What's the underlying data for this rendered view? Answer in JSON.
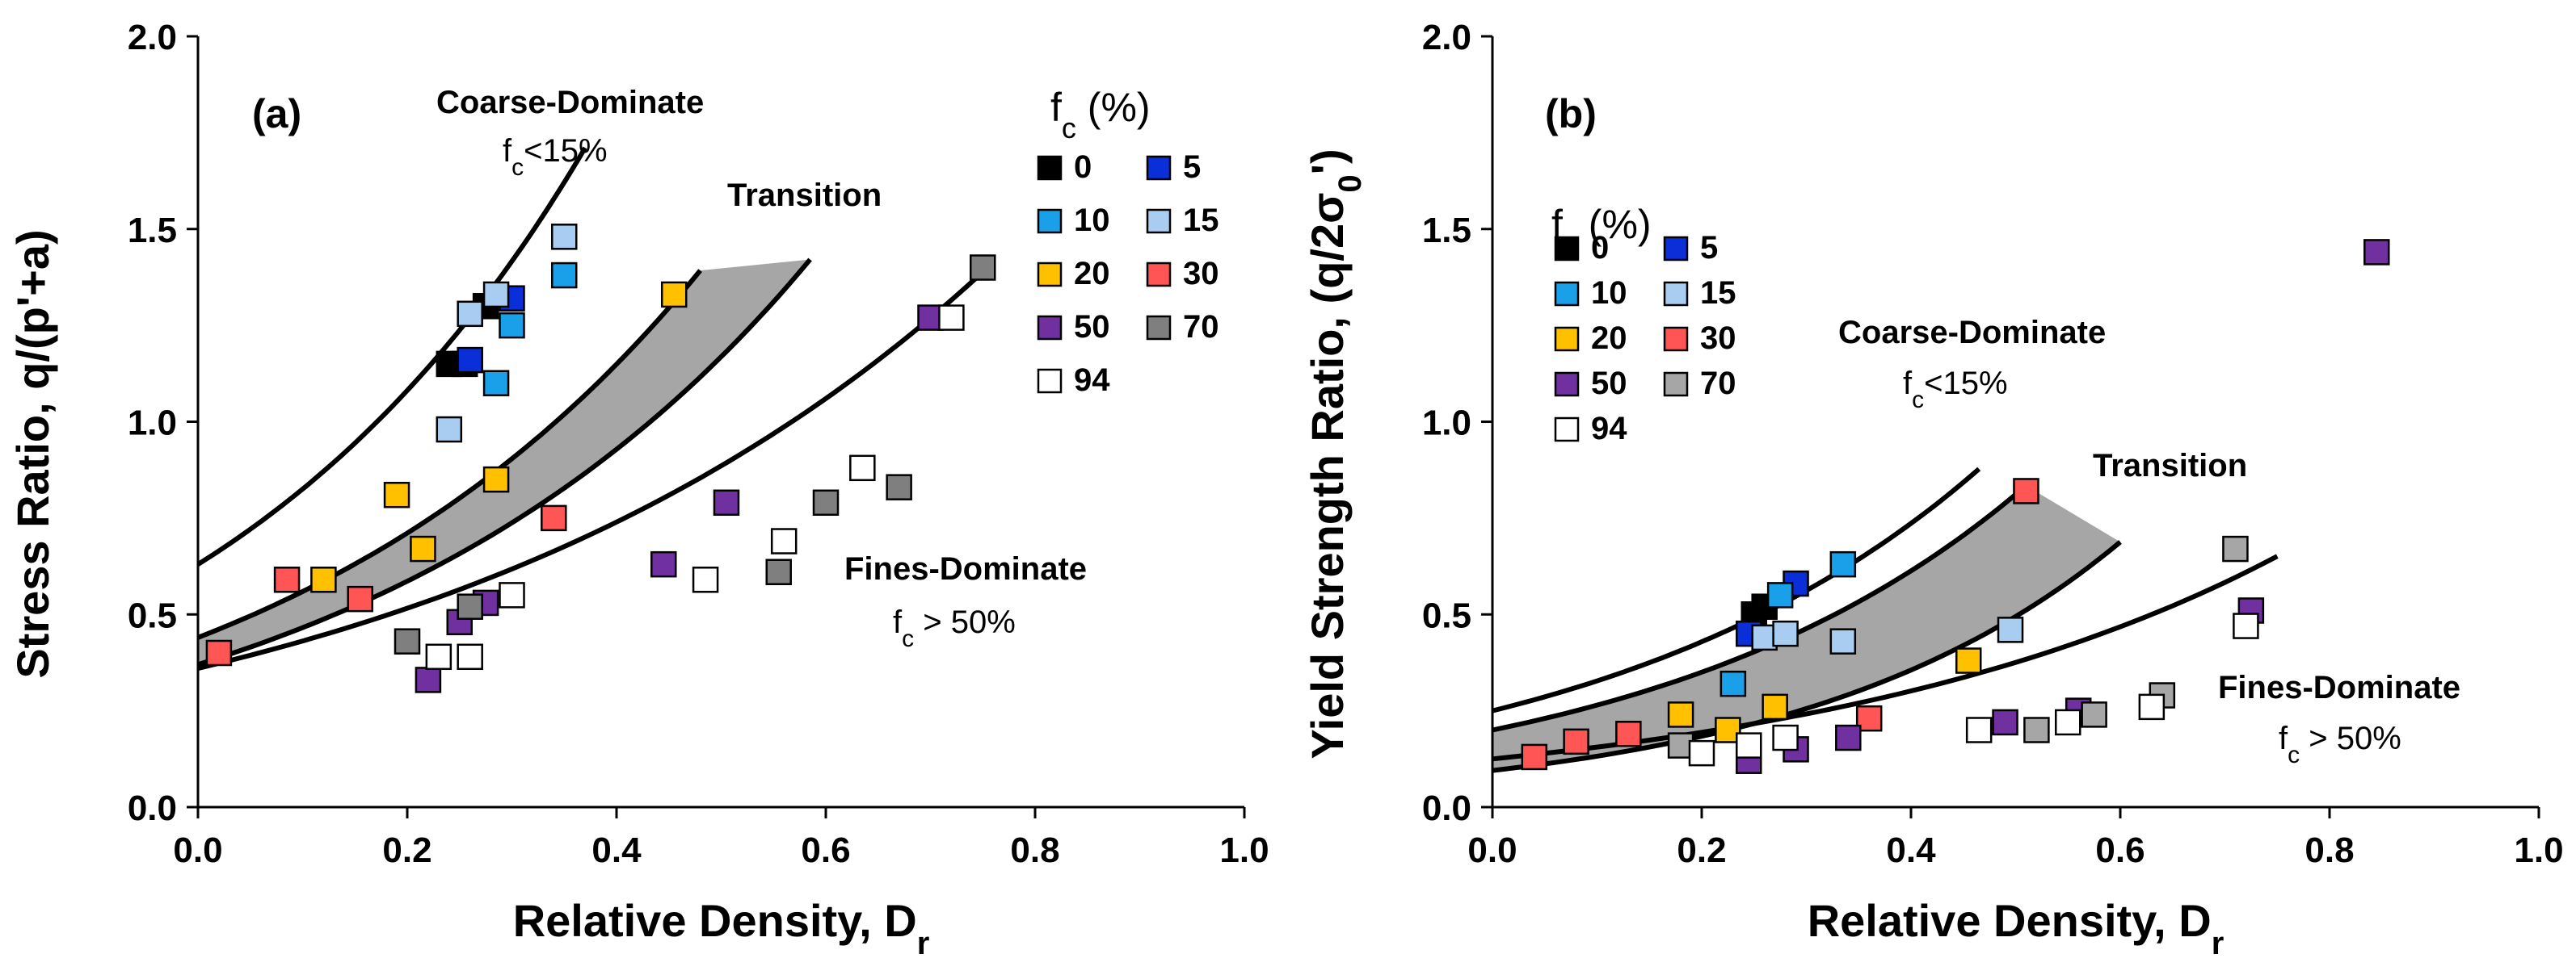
{
  "chart_data": [
    {
      "type": "scatter",
      "panel_label": "(a)",
      "title": "",
      "xlabel": "Relative Density, D_r",
      "ylabel": "Stress Ratio, q/(p'+a)",
      "xlim": [
        0,
        1.0
      ],
      "ylim": [
        0,
        2.0
      ],
      "xticks": [
        "0.0",
        "0.2",
        "0.4",
        "0.6",
        "0.8",
        "1.0"
      ],
      "yticks": [
        "0.0",
        "0.5",
        "1.0",
        "1.5",
        "2.0"
      ],
      "legend": {
        "title": "f_c (%)",
        "placement": "top-right",
        "entries": [
          {
            "label": "0",
            "color": "#000000"
          },
          {
            "label": "5",
            "color": "#0a2fd8"
          },
          {
            "label": "10",
            "color": "#1aa0e8"
          },
          {
            "label": "15",
            "color": "#a8cdf0"
          },
          {
            "label": "20",
            "color": "#ffc000"
          },
          {
            "label": "30",
            "color": "#ff5555"
          },
          {
            "label": "50",
            "color": "#7030a0"
          },
          {
            "label": "70",
            "color": "#7f7f7f"
          },
          {
            "label": "94",
            "color": "#ffffff"
          }
        ]
      },
      "annotations": {
        "coarse_title": "Coarse-Dominate",
        "coarse_sub": "f_c<15%",
        "transition": "Transition",
        "fines_title": "Fines-Dominate",
        "fines_sub": "f_c > 50%"
      },
      "series": [
        {
          "name": "0",
          "color": "#000000",
          "points": [
            [
              0.24,
              1.15
            ],
            [
              0.255,
              1.15
            ],
            [
              0.275,
              1.3
            ]
          ]
        },
        {
          "name": "5",
          "color": "#0a2fd8",
          "points": [
            [
              0.26,
              1.16
            ],
            [
              0.3,
              1.32
            ]
          ]
        },
        {
          "name": "10",
          "color": "#1aa0e8",
          "points": [
            [
              0.285,
              1.1
            ],
            [
              0.3,
              1.25
            ],
            [
              0.35,
              1.38
            ]
          ]
        },
        {
          "name": "15",
          "color": "#a8cdf0",
          "points": [
            [
              0.24,
              0.98
            ],
            [
              0.26,
              1.28
            ],
            [
              0.285,
              1.33
            ],
            [
              0.35,
              1.48
            ]
          ]
        },
        {
          "name": "20",
          "color": "#ffc000",
          "points": [
            [
              0.19,
              0.81
            ],
            [
              0.12,
              0.59
            ],
            [
              0.215,
              0.67
            ],
            [
              0.285,
              0.85
            ],
            [
              0.455,
              1.33
            ]
          ]
        },
        {
          "name": "30",
          "color": "#ff5555",
          "points": [
            [
              0.02,
              0.4
            ],
            [
              0.085,
              0.59
            ],
            [
              0.155,
              0.54
            ],
            [
              0.34,
              0.75
            ]
          ]
        },
        {
          "name": "50",
          "color": "#7030a0",
          "points": [
            [
              0.22,
              0.33
            ],
            [
              0.25,
              0.48
            ],
            [
              0.275,
              0.53
            ],
            [
              0.445,
              0.63
            ],
            [
              0.505,
              0.79
            ],
            [
              0.7,
              1.27
            ]
          ]
        },
        {
          "name": "70",
          "color": "#7f7f7f",
          "points": [
            [
              0.2,
              0.43
            ],
            [
              0.26,
              0.52
            ],
            [
              0.555,
              0.61
            ],
            [
              0.6,
              0.79
            ],
            [
              0.67,
              0.83
            ],
            [
              0.75,
              1.4
            ]
          ]
        },
        {
          "name": "94",
          "color": "#ffffff",
          "points": [
            [
              0.23,
              0.39
            ],
            [
              0.26,
              0.39
            ],
            [
              0.3,
              0.55
            ],
            [
              0.485,
              0.59
            ],
            [
              0.56,
              0.69
            ],
            [
              0.635,
              0.88
            ],
            [
              0.72,
              1.27
            ]
          ]
        }
      ],
      "curves": {
        "coarse": {
          "a": 0.63,
          "b": 2.7,
          "x_end": 0.37
        },
        "band_upper": {
          "a": 0.44,
          "b": 2.4,
          "x_end": 0.48
        },
        "band_lower": {
          "a": 0.37,
          "b": 2.3,
          "x_end": 0.585
        },
        "fines": {
          "a": 0.36,
          "b": 1.8,
          "x_end": 0.76
        }
      }
    },
    {
      "type": "scatter",
      "panel_label": "(b)",
      "title": "",
      "xlabel": "Relative Density, D_r",
      "ylabel": "Yield Strength Ratio, (q/2σ_0')",
      "xlim": [
        0,
        1.0
      ],
      "ylim": [
        0,
        2.0
      ],
      "xticks": [
        "0.0",
        "0.2",
        "0.4",
        "0.6",
        "0.8",
        "1.0"
      ],
      "yticks": [
        "0.0",
        "0.5",
        "1.0",
        "1.5",
        "2.0"
      ],
      "legend": {
        "title": "f_c (%)",
        "placement": "top-left",
        "entries": [
          {
            "label": "0",
            "color": "#000000"
          },
          {
            "label": "5",
            "color": "#0a2fd8"
          },
          {
            "label": "10",
            "color": "#1aa0e8"
          },
          {
            "label": "15",
            "color": "#a8cdf0"
          },
          {
            "label": "20",
            "color": "#ffc000"
          },
          {
            "label": "30",
            "color": "#ff5555"
          },
          {
            "label": "50",
            "color": "#7030a0"
          },
          {
            "label": "70",
            "color": "#a6a6a6"
          },
          {
            "label": "94",
            "color": "#ffffff"
          }
        ]
      },
      "annotations": {
        "coarse_title": "Coarse-Dominate",
        "coarse_sub": "f_c<15%",
        "transition": "Transition",
        "fines_title": "Fines-Dominate",
        "fines_sub": "f_c > 50%"
      },
      "series": [
        {
          "name": "0",
          "color": "#000000",
          "points": [
            [
              0.25,
              0.5
            ],
            [
              0.26,
              0.52
            ]
          ]
        },
        {
          "name": "5",
          "color": "#0a2fd8",
          "points": [
            [
              0.245,
              0.45
            ],
            [
              0.29,
              0.58
            ]
          ]
        },
        {
          "name": "10",
          "color": "#1aa0e8",
          "points": [
            [
              0.275,
              0.55
            ],
            [
              0.335,
              0.63
            ],
            [
              0.23,
              0.32
            ]
          ]
        },
        {
          "name": "15",
          "color": "#a8cdf0",
          "points": [
            [
              0.26,
              0.44
            ],
            [
              0.28,
              0.45
            ],
            [
              0.335,
              0.43
            ],
            [
              0.495,
              0.46
            ]
          ]
        },
        {
          "name": "20",
          "color": "#ffc000",
          "points": [
            [
              0.18,
              0.24
            ],
            [
              0.225,
              0.2
            ],
            [
              0.27,
              0.26
            ],
            [
              0.455,
              0.38
            ]
          ]
        },
        {
          "name": "30",
          "color": "#ff5555",
          "points": [
            [
              0.04,
              0.13
            ],
            [
              0.08,
              0.17
            ],
            [
              0.13,
              0.19
            ],
            [
              0.36,
              0.23
            ],
            [
              0.51,
              0.82
            ]
          ]
        },
        {
          "name": "50",
          "color": "#7030a0",
          "points": [
            [
              0.245,
              0.12
            ],
            [
              0.29,
              0.15
            ],
            [
              0.34,
              0.18
            ],
            [
              0.49,
              0.22
            ],
            [
              0.56,
              0.25
            ],
            [
              0.725,
              0.51
            ],
            [
              0.845,
              1.44
            ]
          ]
        },
        {
          "name": "70",
          "color": "#a6a6a6",
          "points": [
            [
              0.18,
              0.16
            ],
            [
              0.52,
              0.2
            ],
            [
              0.575,
              0.24
            ],
            [
              0.64,
              0.29
            ],
            [
              0.71,
              0.67
            ]
          ]
        },
        {
          "name": "94",
          "color": "#ffffff",
          "points": [
            [
              0.2,
              0.14
            ],
            [
              0.245,
              0.16
            ],
            [
              0.28,
              0.18
            ],
            [
              0.465,
              0.2
            ],
            [
              0.55,
              0.22
            ],
            [
              0.63,
              0.26
            ],
            [
              0.72,
              0.47
            ]
          ]
        }
      ],
      "curves": {
        "coarse": {
          "a": 0.25,
          "b": 2.7,
          "x_end": 0.465
        },
        "band_upper": {
          "a": 0.2,
          "b": 2.8,
          "x_end": 0.51
        },
        "band_lower": {
          "a": 0.095,
          "b": 3.3,
          "x_end": 0.6
        },
        "fines": {
          "a": 0.125,
          "b": 2.2,
          "x_end": 0.75
        }
      }
    }
  ]
}
